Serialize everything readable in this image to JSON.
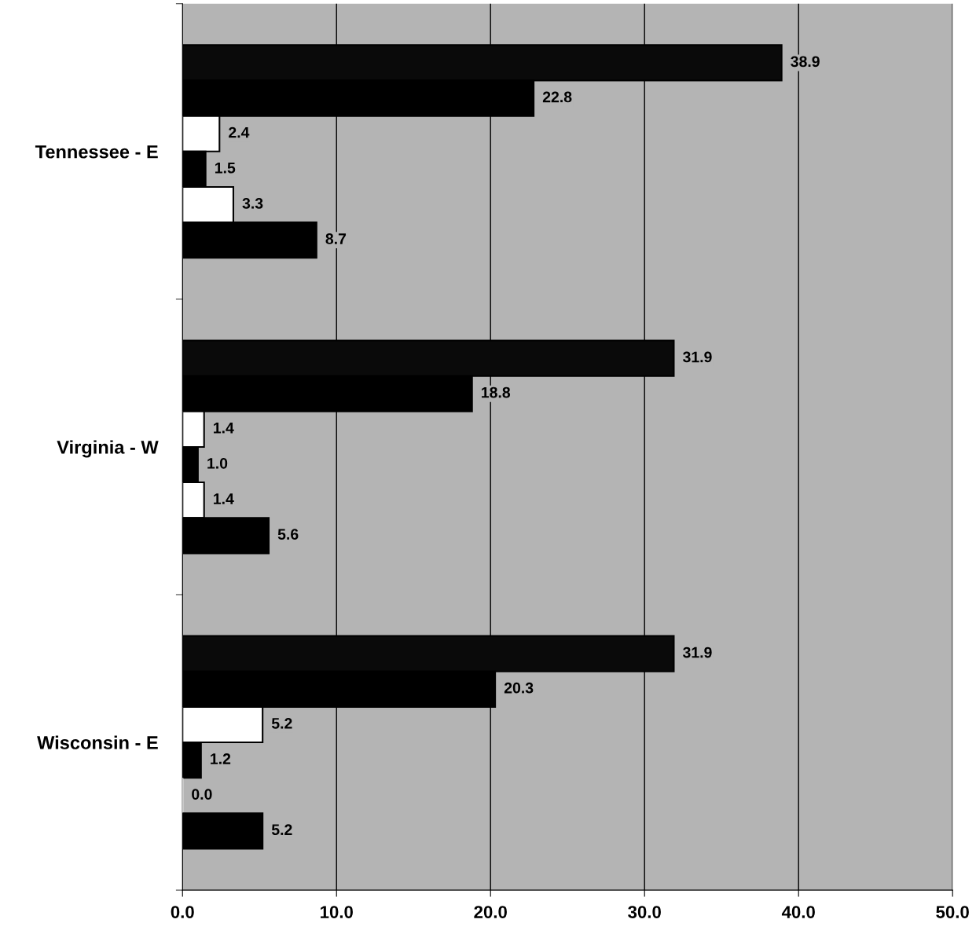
{
  "chart_data": {
    "type": "bar",
    "orientation": "horizontal",
    "categories": [
      "Tennessee - E",
      "Virginia - W",
      "Wisconsin - E"
    ],
    "series": [
      {
        "color": "#0a0a0a",
        "values": [
          38.9,
          31.9,
          31.9
        ],
        "value_labels": [
          "38.9",
          "31.9",
          "31.9"
        ]
      },
      {
        "color": "#000000",
        "values": [
          22.8,
          18.8,
          20.3
        ],
        "value_labels": [
          "22.8",
          "18.8",
          "20.3"
        ]
      },
      {
        "color": "#ffffff",
        "values": [
          2.4,
          1.4,
          5.2
        ],
        "value_labels": [
          "2.4",
          "1.4",
          "5.2"
        ]
      },
      {
        "color": "#000000",
        "values": [
          1.5,
          1.0,
          1.2
        ],
        "value_labels": [
          "1.5",
          "1.0",
          "1.2"
        ]
      },
      {
        "color": "#ffffff",
        "values": [
          3.3,
          1.4,
          0.0
        ],
        "value_labels": [
          "3.3",
          "1.4",
          "0.0"
        ]
      },
      {
        "color": "#000000",
        "values": [
          8.7,
          5.6,
          5.2
        ],
        "value_labels": [
          "8.7",
          "5.6",
          "5.2"
        ]
      }
    ],
    "xlim": [
      0,
      50
    ],
    "xticks": [
      {
        "value": 0,
        "label": "0.0"
      },
      {
        "value": 10,
        "label": "10.0"
      },
      {
        "value": 20,
        "label": "20.0"
      },
      {
        "value": 30,
        "label": "30.0"
      },
      {
        "value": 40,
        "label": "40.0"
      },
      {
        "value": 50,
        "label": "50.0"
      }
    ],
    "grid": "x",
    "legend": false
  }
}
